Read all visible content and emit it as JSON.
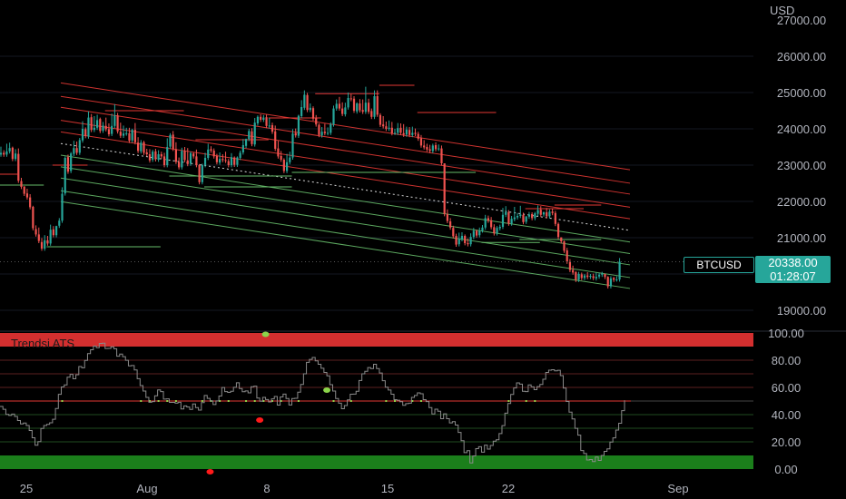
{
  "currency_label": "USD",
  "symbol": "BTCUSD",
  "last_price": "20338.00",
  "countdown": "01:28:07",
  "indicator_name": "Trendsi ATS",
  "colors": {
    "up": "#26a69a",
    "down": "#ef5350",
    "red_line": "#e53935",
    "green_line": "#66bb6a",
    "red_band": "#d32f2f",
    "green_band": "#1b7f1b",
    "osc_line": "#8a8a8a",
    "dot_green": "#8bd44a",
    "dot_red": "#ff1a1a"
  },
  "price_axis": {
    "ticks": [
      "27000.00",
      "26000.00",
      "25000.00",
      "24000.00",
      "23000.00",
      "22000.00",
      "21000.00",
      "19000.00"
    ]
  },
  "osc_axis": {
    "ticks": [
      "100.00",
      "80.00",
      "60.00",
      "40.00",
      "20.00",
      "0.00"
    ]
  },
  "x_axis": {
    "labels": [
      "25",
      "Aug",
      "8",
      "15",
      "22",
      "Sep"
    ]
  },
  "chart_data": {
    "type": "candlestick",
    "x_start": "2023-07-24",
    "bar_interval": "4h",
    "ylim": [
      18900,
      27300
    ],
    "candles": [
      [
        23290,
        23510,
        23340
      ],
      [
        23340,
        23410,
        23290
      ],
      [
        23290,
        23590,
        23380
      ],
      [
        23380,
        23620,
        23470
      ],
      [
        23480,
        23510,
        23170
      ],
      [
        23170,
        23440,
        23320
      ],
      [
        23310,
        23460,
        22570
      ],
      [
        22560,
        22650,
        22400
      ],
      [
        22410,
        22420,
        22210
      ],
      [
        22220,
        22350,
        22110
      ],
      [
        22110,
        22200,
        21840
      ],
      [
        21850,
        21880,
        21260
      ],
      [
        21240,
        21340,
        21090
      ],
      [
        21090,
        21280,
        20910
      ],
      [
        20880,
        20990,
        20700
      ],
      [
        20700,
        21070,
        20930
      ],
      [
        20930,
        21050,
        20840
      ],
      [
        20840,
        21360,
        21220
      ],
      [
        21230,
        21320,
        21070
      ],
      [
        21070,
        21330,
        21320
      ],
      [
        21330,
        21540,
        21470
      ],
      [
        21470,
        22390,
        22210
      ],
      [
        22220,
        23240,
        23200
      ],
      [
        23220,
        23290,
        22820
      ],
      [
        22840,
        23360,
        23320
      ],
      [
        23310,
        23670,
        23470
      ],
      [
        23470,
        23650,
        23340
      ],
      [
        23340,
        23750,
        23690
      ],
      [
        23680,
        24210,
        24000
      ],
      [
        23990,
        24040,
        23800
      ],
      [
        23790,
        24480,
        24310
      ],
      [
        24320,
        24410,
        23970
      ],
      [
        23970,
        24350,
        24030
      ],
      [
        24030,
        24390,
        24240
      ],
      [
        24270,
        24310,
        23940
      ],
      [
        23950,
        24190,
        24090
      ],
      [
        24080,
        24310,
        23990
      ],
      [
        23990,
        24150,
        23850
      ],
      [
        23860,
        24420,
        24080
      ],
      [
        24080,
        24680,
        24370
      ],
      [
        24370,
        24440,
        23930
      ],
      [
        23920,
        24170,
        23810
      ],
      [
        23810,
        24090,
        23870
      ],
      [
        23870,
        24030,
        23880
      ],
      [
        23880,
        24030,
        23670
      ],
      [
        23680,
        24000,
        23970
      ],
      [
        23970,
        24160,
        23630
      ],
      [
        23620,
        23770,
        23390
      ],
      [
        23380,
        23690,
        23620
      ],
      [
        23630,
        23670,
        23340
      ],
      [
        23350,
        23450,
        23300
      ],
      [
        23300,
        23440,
        23130
      ],
      [
        23150,
        23420,
        23370
      ],
      [
        23380,
        23450,
        23160
      ],
      [
        23150,
        23410,
        23300
      ],
      [
        23300,
        23370,
        23240
      ],
      [
        23240,
        23340,
        23000
      ],
      [
        23000,
        23740,
        23500
      ],
      [
        23510,
        23880,
        23830
      ],
      [
        23840,
        23940,
        23450
      ],
      [
        23440,
        23630,
        23090
      ],
      [
        23090,
        23210,
        22940
      ],
      [
        22940,
        23480,
        23390
      ],
      [
        23390,
        23500,
        23140
      ],
      [
        23130,
        23470,
        23030
      ],
      [
        23040,
        23370,
        23330
      ],
      [
        23320,
        23350,
        23240
      ],
      [
        23240,
        23430,
        23000
      ],
      [
        23000,
        23030,
        22530
      ],
      [
        22530,
        23040,
        23000
      ],
      [
        23000,
        23340,
        23200
      ],
      [
        23200,
        23590,
        23430
      ],
      [
        23440,
        23520,
        23400
      ],
      [
        23400,
        23460,
        23240
      ],
      [
        23250,
        23310,
        23080
      ],
      [
        23070,
        23350,
        23170
      ],
      [
        23170,
        23300,
        23140
      ],
      [
        23140,
        23370,
        23120
      ],
      [
        23110,
        23170,
        23000
      ],
      [
        23000,
        23330,
        23220
      ],
      [
        23210,
        23240,
        23010
      ],
      [
        23010,
        23240,
        23210
      ],
      [
        23200,
        23400,
        23340
      ],
      [
        23350,
        23720,
        23550
      ],
      [
        23530,
        23730,
        23720
      ],
      [
        23720,
        24000,
        23940
      ],
      [
        23930,
        24020,
        23580
      ],
      [
        23570,
        24300,
        24170
      ],
      [
        24150,
        24370,
        24330
      ],
      [
        24330,
        24400,
        24250
      ],
      [
        24250,
        24380,
        24310
      ],
      [
        24320,
        24390,
        24080
      ],
      [
        24070,
        24300,
        24090
      ],
      [
        24100,
        24170,
        23920
      ],
      [
        23930,
        24090,
        23450
      ],
      [
        23460,
        23670,
        23240
      ],
      [
        23250,
        23390,
        23150
      ],
      [
        23150,
        23190,
        22840
      ],
      [
        22840,
        23310,
        23080
      ],
      [
        23080,
        23370,
        23210
      ],
      [
        23210,
        23990,
        23870
      ],
      [
        23880,
        24010,
        23820
      ],
      [
        23810,
        24390,
        24360
      ],
      [
        24350,
        24790,
        24600
      ],
      [
        24580,
        25060,
        24940
      ],
      [
        24930,
        24990,
        24520
      ],
      [
        24520,
        24700,
        24580
      ],
      [
        24570,
        24620,
        24280
      ],
      [
        24290,
        24380,
        24120
      ],
      [
        24110,
        24150,
        23830
      ],
      [
        23820,
        24050,
        23920
      ],
      [
        23920,
        24140,
        23880
      ],
      [
        23880,
        24040,
        23890
      ],
      [
        23890,
        24180,
        24130
      ],
      [
        24120,
        24640,
        24560
      ],
      [
        24560,
        24810,
        24690
      ],
      [
        24690,
        24880,
        24560
      ],
      [
        24560,
        24730,
        24410
      ],
      [
        24400,
        24720,
        24590
      ],
      [
        24590,
        25000,
        24850
      ],
      [
        24840,
        24960,
        24820
      ],
      [
        24830,
        24900,
        24500
      ],
      [
        24480,
        24730,
        24700
      ],
      [
        24700,
        24820,
        24510
      ],
      [
        24520,
        24810,
        24470
      ],
      [
        24470,
        25160,
        24720
      ],
      [
        24720,
        24830,
        24470
      ],
      [
        24490,
        24560,
        24330
      ],
      [
        24330,
        25060,
        24900
      ],
      [
        24900,
        25060,
        24390
      ],
      [
        24380,
        24430,
        24110
      ],
      [
        24120,
        24350,
        24070
      ],
      [
        24070,
        24200,
        24000
      ],
      [
        24000,
        24230,
        24030
      ],
      [
        24030,
        24190,
        23880
      ],
      [
        23890,
        24000,
        23890
      ],
      [
        23890,
        24160,
        24020
      ],
      [
        24030,
        24150,
        23890
      ],
      [
        23880,
        24130,
        23840
      ],
      [
        23840,
        24060,
        23980
      ],
      [
        23970,
        24050,
        23830
      ],
      [
        23830,
        24060,
        23890
      ],
      [
        23890,
        24010,
        23860
      ],
      [
        23860,
        23920,
        23730
      ],
      [
        23740,
        23830,
        23540
      ],
      [
        23540,
        23690,
        23490
      ],
      [
        23500,
        23590,
        23430
      ],
      [
        23440,
        23560,
        23390
      ],
      [
        23390,
        23590,
        23540
      ],
      [
        23550,
        23630,
        23440
      ],
      [
        23450,
        23570,
        23460
      ],
      [
        23460,
        23540,
        23050
      ],
      [
        23050,
        22520,
        21650
      ],
      [
        21650,
        21780,
        21460
      ],
      [
        21450,
        21540,
        21280
      ],
      [
        21270,
        21330,
        21040
      ],
      [
        21050,
        21110,
        20810
      ],
      [
        20820,
        21140,
        20960
      ],
      [
        20960,
        21150,
        21050
      ],
      [
        21050,
        21090,
        20850
      ],
      [
        20850,
        20980,
        20820
      ],
      [
        20820,
        21120,
        21020
      ],
      [
        21020,
        21270,
        21190
      ],
      [
        21190,
        21220,
        21060
      ],
      [
        21070,
        21280,
        21200
      ],
      [
        21200,
        21350,
        21280
      ],
      [
        21280,
        21630,
        21540
      ],
      [
        21540,
        21610,
        21470
      ],
      [
        21480,
        21570,
        21290
      ],
      [
        21290,
        21370,
        21120
      ],
      [
        21120,
        21320,
        21270
      ],
      [
        21260,
        21360,
        21300
      ],
      [
        21300,
        21820,
        21630
      ],
      [
        21630,
        21870,
        21700
      ],
      [
        21700,
        21760,
        21390
      ],
      [
        21390,
        21600,
        21520
      ],
      [
        21510,
        21850,
        21560
      ],
      [
        21560,
        21680,
        21600
      ],
      [
        21600,
        21880,
        21640
      ],
      [
        21630,
        21690,
        21430
      ],
      [
        21440,
        21600,
        21580
      ],
      [
        21580,
        21710,
        21640
      ],
      [
        21650,
        21700,
        21540
      ],
      [
        21540,
        21710,
        21670
      ],
      [
        21660,
        21890,
        21760
      ],
      [
        21770,
        21870,
        21630
      ],
      [
        21640,
        21720,
        21700
      ],
      [
        21700,
        21820,
        21590
      ],
      [
        21590,
        21780,
        21720
      ],
      [
        21720,
        21800,
        21680
      ],
      [
        21680,
        21740,
        21380
      ],
      [
        21380,
        21420,
        21020
      ],
      [
        21010,
        21010,
        20900
      ],
      [
        20900,
        20920,
        20640
      ],
      [
        20650,
        20720,
        20340
      ],
      [
        20330,
        20410,
        20110
      ],
      [
        20110,
        20230,
        20040
      ],
      [
        20050,
        20080,
        19840
      ],
      [
        19840,
        20060,
        20000
      ],
      [
        19990,
        20040,
        19890
      ],
      [
        19890,
        20000,
        19960
      ],
      [
        19960,
        20050,
        19920
      ],
      [
        19920,
        20000,
        19950
      ],
      [
        19940,
        20010,
        19890
      ],
      [
        19880,
        20040,
        19920
      ],
      [
        19930,
        20030,
        19980
      ],
      [
        19980,
        20060,
        20010
      ],
      [
        20000,
        20010,
        19920
      ],
      [
        19920,
        19940,
        19660
      ],
      [
        19660,
        19940,
        19880
      ],
      [
        19890,
        19920,
        19840
      ],
      [
        19850,
        19940,
        19850
      ],
      [
        19850,
        20440,
        20340
      ]
    ],
    "channel": {
      "midline": [
        [
          0,
          23850
        ],
        [
          216,
          21200
        ]
      ],
      "offsets": [
        -1600,
        -1300,
        -950,
        -640,
        -320,
        0,
        320,
        640,
        1000,
        1300,
        1670
      ]
    },
    "osc_ylim": [
      0,
      100
    ],
    "osc_levels": [
      0,
      10,
      20,
      30,
      40,
      50,
      60,
      70,
      80,
      90,
      100
    ],
    "osc_mid": 50,
    "oscillator": [
      46.0,
      43.9,
      40.2,
      39.4,
      40.4,
      38.7,
      35.7,
      33.2,
      33.8,
      32.0,
      28.3,
      23.0,
      17.5,
      20.2,
      29.8,
      32.0,
      32.8,
      34.0,
      36.6,
      44.5,
      54.9,
      60.3,
      61.8,
      67.5,
      69.6,
      66.3,
      69.3,
      75.3,
      74.4,
      79.8,
      84.8,
      87.7,
      90.3,
      89.2,
      92.3,
      92.5,
      88.6,
      88.7,
      89.8,
      88.4,
      82.9,
      84.5,
      82.6,
      79.9,
      75.8,
      76.1,
      72.8,
      66.4,
      61.3,
      57.3,
      52.7,
      49.1,
      49.6,
      53.8,
      58.2,
      56.9,
      51.4,
      51.6,
      49.0,
      49.0,
      48.4,
      49.1,
      44.2,
      46.4,
      45.6,
      43.8,
      47.8,
      45.2,
      43.3,
      48.8,
      54.1,
      51.9,
      50.1,
      47.4,
      50.1,
      53.7,
      59.9,
      56.9,
      56.3,
      57.2,
      60.1,
      63.4,
      59.2,
      56.8,
      57.4,
      56.0,
      60.5,
      60.9,
      52.2,
      49.8,
      52.7,
      51.1,
      49.3,
      51.6,
      53.3,
      47.0,
      53.0,
      55.1,
      51.8,
      47.1,
      51.8,
      52.0,
      56.5,
      62.2,
      70.0,
      78.4,
      80.6,
      82.0,
      79.5,
      77.0,
      74.1,
      71.0,
      68.5,
      62.0,
      57.3,
      51.8,
      48.4,
      44.3,
      46.7,
      50.8,
      55.0,
      55.1,
      57.2,
      65.1,
      70.0,
      71.8,
      74.6,
      73.8,
      77.0,
      73.8,
      70.6,
      64.9,
      60.2,
      58.1,
      55.0,
      51.0,
      50.6,
      49.5,
      46.8,
      48.1,
      48.4,
      52.7,
      54.1,
      56.0,
      55.3,
      51.0,
      49.6,
      45.2,
      40.5,
      44.0,
      42.5,
      37.0,
      40.6,
      37.0,
      33.9,
      34.8,
      32.3,
      26.9,
      20.8,
      12.1,
      13.5,
      4.5,
      9.7,
      15.0,
      16.4,
      12.4,
      17.6,
      14.7,
      17.3,
      20.5,
      21.5,
      26.1,
      31.9,
      41.1,
      48.2,
      54.8,
      59.6,
      63.3,
      62.4,
      57.2,
      56.9,
      61.8,
      60.4,
      58.3,
      60.6,
      62.2,
      66.0,
      71.0,
      72.7,
      73.0,
      72.2,
      72.6,
      68.7,
      59.5,
      49.7,
      41.8,
      36.8,
      29.9,
      24.9,
      13.6,
      11.4,
      6.7,
      7.0,
      5.5,
      8.8,
      6.3,
      10.0,
      13.0,
      14.8,
      19.8,
      22.9,
      28.7,
      33.7,
      42.9,
      50.6
    ],
    "ind_dots": [
      [
        112,
        58,
        "green"
      ],
      [
        91,
        99,
        "green"
      ],
      [
        89,
        36,
        "red"
      ],
      [
        72,
        -2,
        "red"
      ]
    ]
  }
}
